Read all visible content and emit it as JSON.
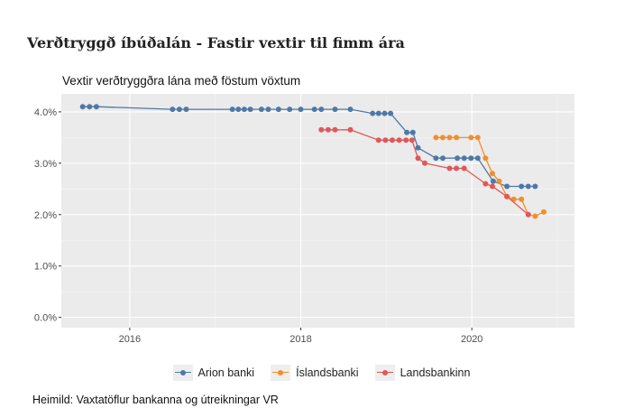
{
  "header": {
    "title": "Verðtryggð íbúðalán - Fastir vextir til fimm ára"
  },
  "footer": {
    "source": "Heimild: Vaxtatöflur bankanna og útreikningar VR"
  },
  "chart_data": {
    "type": "line",
    "title": "Vextir verðtryggðra lána með föstum vöxtum",
    "xlabel": "",
    "ylabel": "",
    "x_ticks": [
      "2016",
      "2018",
      "2020"
    ],
    "y_ticks": [
      "0.0%",
      "1.0%",
      "2.0%",
      "3.0%",
      "4.0%"
    ],
    "xlim": [
      2015.2,
      2021.2
    ],
    "ylim": [
      -0.2,
      4.35
    ],
    "grid": true,
    "legend_position": "bottom",
    "series": [
      {
        "name": "Arion banki",
        "color": "#4e79a7",
        "points": [
          [
            2015.45,
            4.1
          ],
          [
            2015.53,
            4.1
          ],
          [
            2015.61,
            4.1
          ],
          [
            2016.5,
            4.05
          ],
          [
            2016.58,
            4.05
          ],
          [
            2016.66,
            4.05
          ],
          [
            2017.2,
            4.05
          ],
          [
            2017.27,
            4.05
          ],
          [
            2017.34,
            4.05
          ],
          [
            2017.41,
            4.05
          ],
          [
            2017.54,
            4.05
          ],
          [
            2017.62,
            4.05
          ],
          [
            2017.74,
            4.05
          ],
          [
            2017.87,
            4.05
          ],
          [
            2018.0,
            4.05
          ],
          [
            2018.16,
            4.05
          ],
          [
            2018.24,
            4.05
          ],
          [
            2018.4,
            4.05
          ],
          [
            2018.58,
            4.05
          ],
          [
            2018.84,
            3.97
          ],
          [
            2018.91,
            3.97
          ],
          [
            2018.98,
            3.97
          ],
          [
            2019.05,
            3.97
          ],
          [
            2019.24,
            3.6
          ],
          [
            2019.31,
            3.6
          ],
          [
            2019.37,
            3.3
          ],
          [
            2019.58,
            3.1
          ],
          [
            2019.66,
            3.1
          ],
          [
            2019.83,
            3.1
          ],
          [
            2019.91,
            3.1
          ],
          [
            2019.99,
            3.1
          ],
          [
            2020.07,
            3.1
          ],
          [
            2020.25,
            2.65
          ],
          [
            2020.41,
            2.55
          ],
          [
            2020.58,
            2.55
          ],
          [
            2020.66,
            2.55
          ],
          [
            2020.74,
            2.55
          ]
        ]
      },
      {
        "name": "Íslandsbanki",
        "color": "#f28e2b",
        "points": [
          [
            2019.58,
            3.5
          ],
          [
            2019.66,
            3.5
          ],
          [
            2019.74,
            3.5
          ],
          [
            2019.82,
            3.5
          ],
          [
            2019.99,
            3.5
          ],
          [
            2020.07,
            3.5
          ],
          [
            2020.16,
            3.1
          ],
          [
            2020.24,
            2.8
          ],
          [
            2020.32,
            2.65
          ],
          [
            2020.41,
            2.35
          ],
          [
            2020.49,
            2.3
          ],
          [
            2020.58,
            2.3
          ],
          [
            2020.66,
            2.0
          ],
          [
            2020.74,
            1.97
          ],
          [
            2020.84,
            2.05
          ]
        ]
      },
      {
        "name": "Landsbankinn",
        "color": "#e15759",
        "points": [
          [
            2018.24,
            3.65
          ],
          [
            2018.32,
            3.65
          ],
          [
            2018.4,
            3.65
          ],
          [
            2018.58,
            3.65
          ],
          [
            2018.91,
            3.45
          ],
          [
            2018.99,
            3.45
          ],
          [
            2019.07,
            3.45
          ],
          [
            2019.15,
            3.45
          ],
          [
            2019.23,
            3.45
          ],
          [
            2019.3,
            3.45
          ],
          [
            2019.37,
            3.1
          ],
          [
            2019.45,
            3.0
          ],
          [
            2019.74,
            2.9
          ],
          [
            2019.82,
            2.9
          ],
          [
            2019.91,
            2.9
          ],
          [
            2020.16,
            2.6
          ],
          [
            2020.24,
            2.55
          ],
          [
            2020.41,
            2.35
          ],
          [
            2020.66,
            2.0
          ]
        ]
      }
    ]
  }
}
